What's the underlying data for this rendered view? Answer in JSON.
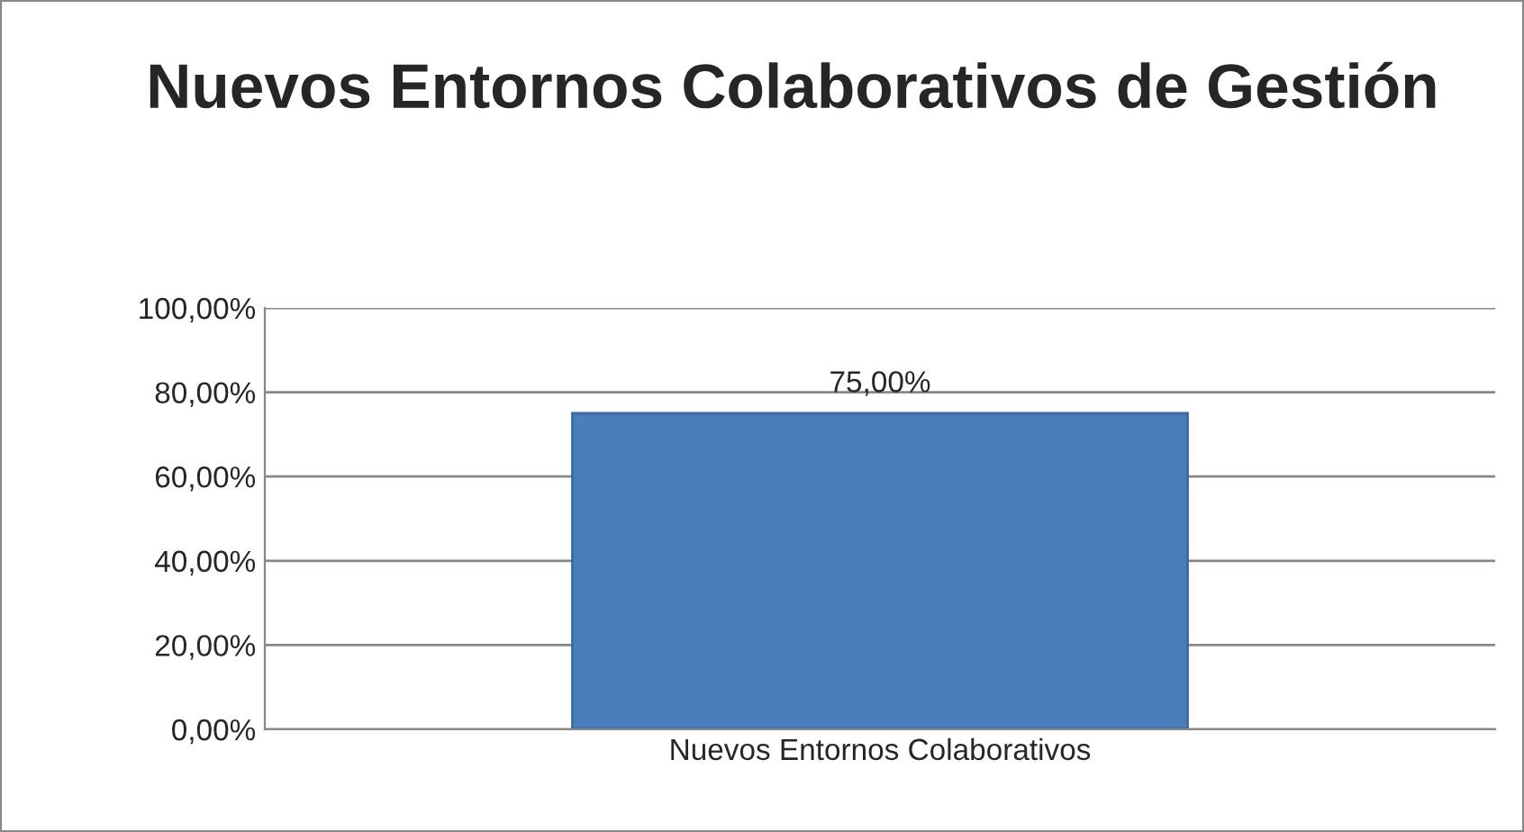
{
  "chart_data": {
    "type": "bar",
    "title": "Nuevos Entornos Colaborativos de Gestión",
    "categories": [
      "Nuevos Entornos Colaborativos"
    ],
    "series": [
      {
        "color": "#4a7ebb",
        "values": [
          75
        ],
        "value_labels": [
          "75,00%"
        ]
      }
    ],
    "ylim": [
      0,
      100
    ],
    "yticks": [
      {
        "value": 0,
        "label": "0,00%"
      },
      {
        "value": 20,
        "label": "20,00%"
      },
      {
        "value": 40,
        "label": "40,00%"
      },
      {
        "value": 60,
        "label": "60,00%"
      },
      {
        "value": 80,
        "label": "80,00%"
      },
      {
        "value": 100,
        "label": "100,00%"
      }
    ],
    "grid": "y"
  }
}
